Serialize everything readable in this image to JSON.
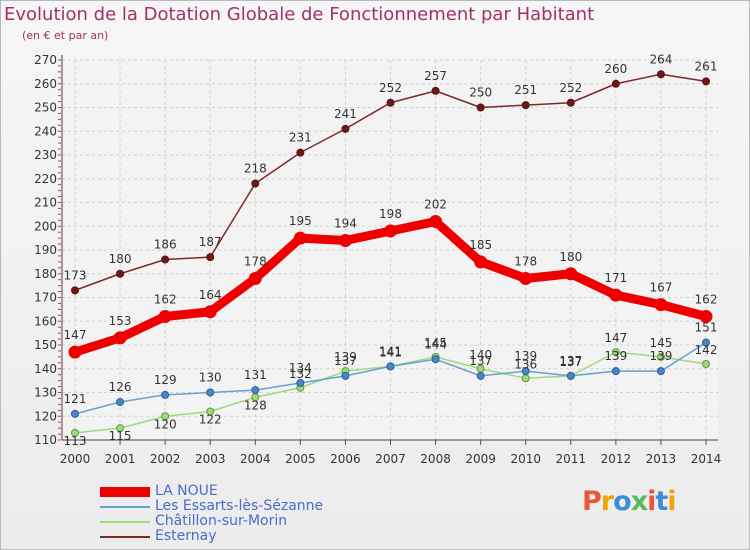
{
  "title": "Evolution de la Dotation Globale de Fonctionnement par Habitant",
  "subtitle": "(en € et par an)",
  "logo": {
    "text": "Proxiti",
    "colors": [
      "#e8573a",
      "#f0a30a",
      "#3a8fd8",
      "#5cb85c",
      "#e8573a",
      "#3a8fd8",
      "#f0a30a"
    ]
  },
  "chart_data": {
    "type": "line",
    "title": "Evolution de la Dotation Globale de Fonctionnement par Habitant",
    "subtitle": "(en € et par an)",
    "xlabel": "",
    "ylabel": "",
    "x": [
      "2000",
      "2001",
      "2002",
      "2003",
      "2004",
      "2005",
      "2006",
      "2007",
      "2008",
      "2009",
      "2010",
      "2011",
      "2012",
      "2013",
      "2014"
    ],
    "ylim": [
      110,
      270
    ],
    "yticks": [
      110,
      120,
      130,
      140,
      150,
      160,
      170,
      180,
      190,
      200,
      210,
      220,
      230,
      240,
      250,
      260,
      270
    ],
    "grid": true,
    "legend_position": "bottom-left",
    "series": [
      {
        "name": "LA NOUE",
        "color": "#ee0000",
        "values": [
          147,
          153,
          162,
          164,
          178,
          195,
          194,
          198,
          202,
          185,
          178,
          180,
          171,
          167,
          162
        ]
      },
      {
        "name": "Les Essarts-lès-Sézanne",
        "color": "#6a9fd4",
        "values": [
          121,
          126,
          129,
          130,
          131,
          134,
          137,
          141,
          144,
          137,
          139,
          137,
          139,
          139,
          151
        ]
      },
      {
        "name": "Châtillon-sur-Morin",
        "color": "#9ed97a",
        "values": [
          113,
          115,
          120,
          122,
          128,
          132,
          139,
          141,
          145,
          140,
          136,
          137,
          147,
          145,
          142
        ]
      },
      {
        "name": "Esternay",
        "color": "#7a2a2a",
        "values": [
          173,
          180,
          186,
          187,
          218,
          231,
          241,
          252,
          257,
          250,
          251,
          252,
          260,
          264,
          261
        ]
      }
    ]
  }
}
